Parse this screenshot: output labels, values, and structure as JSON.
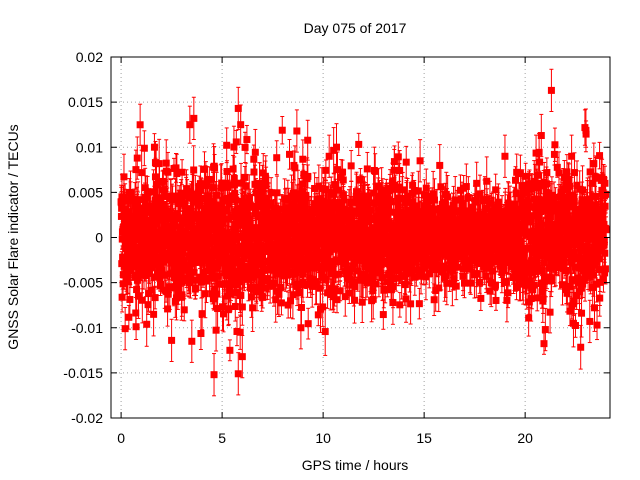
{
  "chart_data": {
    "type": "scatter",
    "title": "Day 075 of 2017",
    "xlabel": "GPS time / hours",
    "ylabel": "GNSS Solar Flare indicator / TECUs",
    "xlim": [
      -0.5,
      24.2
    ],
    "ylim": [
      -0.02,
      0.02
    ],
    "xticks": [
      0,
      5,
      10,
      15,
      20
    ],
    "yticks": [
      -0.02,
      -0.015,
      -0.01,
      -0.005,
      0,
      0.005,
      0.01,
      0.015,
      0.02
    ],
    "ytick_labels": [
      "-0.02",
      "-0.015",
      "-0.01",
      "-0.005",
      "0",
      "0.005",
      "0.01",
      "0.015",
      "0.02"
    ],
    "grid": true,
    "marker": "square",
    "error_bars": true,
    "series_color": "#ff0000",
    "x_range_hours": [
      0,
      24
    ],
    "typical_spread": 0.0045,
    "typical_error": 0.0018,
    "n_points": 2880,
    "notable_points": [
      {
        "x": 3.6,
        "y": 0.0132
      },
      {
        "x": 5.8,
        "y": 0.0143
      },
      {
        "x": 8.7,
        "y": 0.0118
      },
      {
        "x": 21.3,
        "y": 0.0163
      },
      {
        "x": 20.8,
        "y": 0.0113
      },
      {
        "x": 4.6,
        "y": -0.0152
      },
      {
        "x": 5.8,
        "y": -0.0151
      },
      {
        "x": 6.0,
        "y": -0.0132
      },
      {
        "x": 2.5,
        "y": -0.0114
      },
      {
        "x": 3.5,
        "y": -0.0115
      },
      {
        "x": 8.9,
        "y": -0.01
      },
      {
        "x": 21.0,
        "y": -0.0102
      },
      {
        "x": 19.0,
        "y": 0.009
      },
      {
        "x": 14.8,
        "y": 0.0085
      },
      {
        "x": 10.3,
        "y": 0.009
      },
      {
        "x": 23.2,
        "y": -0.0093
      },
      {
        "x": 0.8,
        "y": 0.0088
      },
      {
        "x": 1.7,
        "y": 0.0083
      },
      {
        "x": 22.3,
        "y": 0.009
      },
      {
        "x": 0.2,
        "y": -0.0101
      },
      {
        "x": 12.4,
        "y": -0.007
      },
      {
        "x": 17.6,
        "y": 0.006
      }
    ]
  }
}
